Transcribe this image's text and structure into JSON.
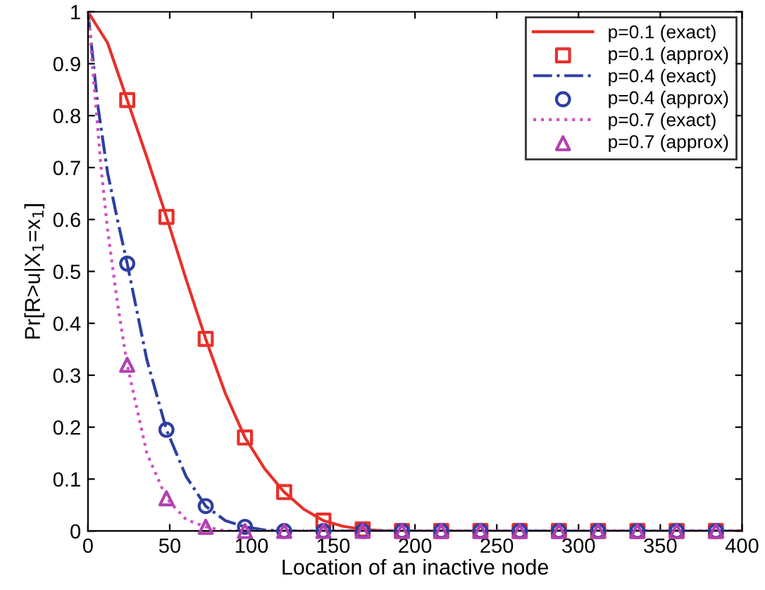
{
  "chart_data": {
    "type": "line",
    "xlabel": "Location of an inactive node",
    "ylabel": "Pr[R>u|X$_{1}$=x$_{1}$]",
    "xlim": [
      0,
      400
    ],
    "ylim": [
      0,
      1
    ],
    "xticks": [
      0,
      50,
      100,
      150,
      200,
      250,
      300,
      350,
      400
    ],
    "yticks": [
      0,
      0.1,
      0.2,
      0.3,
      0.4,
      0.5,
      0.6,
      0.7,
      0.8,
      0.9,
      1
    ],
    "grid": false,
    "legend": "top right",
    "series": [
      {
        "name": "p=0.1 (exact)",
        "line_style": "solid",
        "marker": "none",
        "color": "#e8302a",
        "x": [
          0,
          12,
          24,
          36,
          48,
          60,
          72,
          84,
          96,
          108,
          120,
          132,
          144,
          156,
          168,
          180,
          192,
          400
        ],
        "values": [
          1,
          0.94,
          0.83,
          0.72,
          0.605,
          0.485,
          0.37,
          0.265,
          0.18,
          0.12,
          0.075,
          0.042,
          0.02,
          0.009,
          0.003,
          0.001,
          0,
          0
        ]
      },
      {
        "name": "p=0.1 (approx)",
        "type": "scatter",
        "marker": "square",
        "color": "#e8302a",
        "x": [
          24,
          48,
          72,
          96,
          120,
          144,
          168,
          192,
          216,
          240,
          264,
          288,
          312,
          336,
          360,
          384
        ],
        "values": [
          0.83,
          0.605,
          0.37,
          0.18,
          0.075,
          0.02,
          0.003,
          0,
          0,
          0,
          0,
          0,
          0,
          0,
          0,
          0
        ]
      },
      {
        "name": "p=0.4 (exact)",
        "line_style": "dashdot",
        "marker": "none",
        "color": "#2e3fa0",
        "x": [
          0,
          6,
          12,
          18,
          24,
          36,
          48,
          60,
          72,
          84,
          96,
          108,
          120,
          400
        ],
        "values": [
          1,
          0.82,
          0.69,
          0.6,
          0.515,
          0.33,
          0.195,
          0.105,
          0.048,
          0.02,
          0.008,
          0.002,
          0,
          0
        ]
      },
      {
        "name": "p=0.4 (approx)",
        "type": "scatter",
        "marker": "circle",
        "color": "#2e3fa0",
        "x": [
          24,
          48,
          72,
          96,
          120,
          144,
          168,
          192,
          216,
          240,
          264,
          288,
          312,
          336,
          360,
          384
        ],
        "values": [
          0.515,
          0.195,
          0.048,
          0.008,
          0,
          0,
          0,
          0,
          0,
          0,
          0,
          0,
          0,
          0,
          0,
          0
        ]
      },
      {
        "name": "p=0.7 (exact)",
        "line_style": "dotted",
        "marker": "none",
        "color": "#d050c0",
        "x": [
          0,
          4,
          8,
          12,
          18,
          24,
          36,
          48,
          60,
          72,
          84,
          400
        ],
        "values": [
          1,
          0.85,
          0.7,
          0.58,
          0.44,
          0.32,
          0.15,
          0.063,
          0.022,
          0.008,
          0,
          0
        ]
      },
      {
        "name": "p=0.7 (approx)",
        "type": "scatter",
        "marker": "triangle",
        "color": "#b040b0",
        "x": [
          24,
          48,
          72,
          96,
          120,
          144,
          168,
          192,
          216,
          240,
          264,
          288,
          312,
          336,
          360,
          384
        ],
        "values": [
          0.32,
          0.063,
          0.008,
          0,
          0,
          0,
          0,
          0,
          0,
          0,
          0,
          0,
          0,
          0,
          0,
          0
        ]
      }
    ]
  }
}
